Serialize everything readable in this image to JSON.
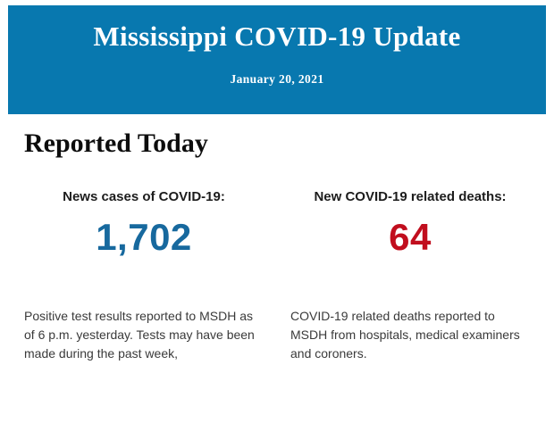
{
  "banner": {
    "title": "Mississippi COVID-19 Update",
    "date": "January 20, 2021",
    "background_color": "#0878af",
    "text_color": "#ffffff"
  },
  "section": {
    "heading": "Reported Today"
  },
  "stats": [
    {
      "label": "News cases of COVID-19:",
      "value": "1,702",
      "value_color": "#17699e",
      "description": "Positive test results reported to MSDH as of 6 p.m. yesterday. Tests may have been made during the past week,"
    },
    {
      "label": "New COVID-19 related deaths:",
      "value": "64",
      "value_color": "#c10e1e",
      "description": "COVID-19 related deaths reported to MSDH from hospitals, medical examiners and coroners."
    }
  ]
}
